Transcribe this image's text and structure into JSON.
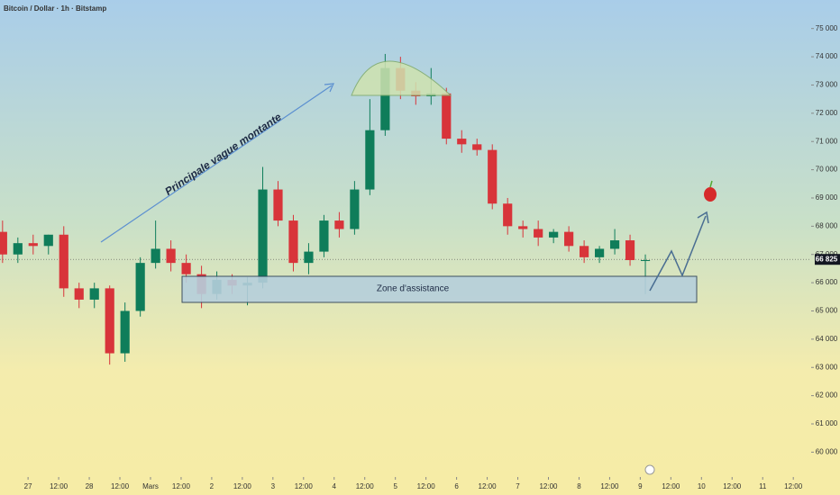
{
  "chart_data": {
    "type": "candlestick",
    "title": "Bitcoin / Dollar · 1h · Bitstamp",
    "x": [
      -10,
      -4,
      2,
      8,
      14,
      20,
      26,
      32,
      38,
      44,
      50,
      56,
      62,
      68,
      74,
      80,
      86,
      92,
      98,
      104,
      110,
      116,
      122,
      128,
      134,
      140,
      146,
      152,
      158,
      164,
      170,
      176,
      182,
      188,
      194,
      200,
      206,
      212,
      218,
      224,
      230,
      236,
      242
    ],
    "open": [
      67800,
      67000,
      67400,
      67300,
      67700,
      65800,
      65400,
      65800,
      63500,
      65000,
      66700,
      67200,
      66700,
      66300,
      65600,
      66100,
      65900,
      66000,
      69300,
      68200,
      66700,
      67100,
      68200,
      67900,
      69300,
      71400,
      73600,
      72800,
      72600,
      72700,
      71100,
      70900,
      70700,
      68800,
      68000,
      67900,
      67600,
      67800,
      67300,
      66900,
      67200,
      67500,
      66800
    ],
    "high": [
      68200,
      67600,
      67700,
      67700,
      68000,
      66000,
      66000,
      65900,
      65300,
      66900,
      68200,
      67500,
      67000,
      66600,
      66400,
      66300,
      66200,
      70100,
      69600,
      68400,
      67400,
      68400,
      68500,
      69600,
      72500,
      74100,
      74000,
      73100,
      73600,
      72900,
      71400,
      71100,
      70900,
      69000,
      68200,
      68200,
      67900,
      68000,
      67500,
      67300,
      67900,
      67700,
      67000
    ],
    "low": [
      66700,
      66700,
      67000,
      67000,
      65500,
      65100,
      65100,
      63100,
      63200,
      64800,
      66500,
      66400,
      66000,
      65100,
      65400,
      65600,
      65200,
      65800,
      68000,
      66400,
      66300,
      66900,
      67600,
      67700,
      69100,
      71200,
      72500,
      72300,
      72300,
      70900,
      70600,
      70500,
      68600,
      67700,
      67600,
      67300,
      67400,
      67100,
      66700,
      66700,
      67000,
      66600,
      65600
    ],
    "close": [
      67000,
      67400,
      67300,
      67700,
      65800,
      65400,
      65800,
      63500,
      65000,
      66700,
      67200,
      66700,
      66300,
      65600,
      66100,
      65900,
      66000,
      69300,
      68200,
      66700,
      67100,
      68200,
      67900,
      69300,
      71400,
      73600,
      72800,
      72600,
      72700,
      71100,
      70900,
      70700,
      68800,
      68000,
      67900,
      67600,
      67800,
      67300,
      66900,
      67200,
      67500,
      66800,
      66800
    ],
    "up_color": "#0f7d5a",
    "down_color": "#d8343a",
    "xlim": [
      -11,
      307
    ],
    "ylim": [
      59120,
      76010
    ],
    "xticks": [
      {
        "value": 0,
        "label": "27"
      },
      {
        "value": 12,
        "label": "12:00"
      },
      {
        "value": 24,
        "label": "28"
      },
      {
        "value": 36,
        "label": "12:00"
      },
      {
        "value": 48,
        "label": "Mars"
      },
      {
        "value": 60,
        "label": "12:00"
      },
      {
        "value": 72,
        "label": "2"
      },
      {
        "value": 84,
        "label": "12:00"
      },
      {
        "value": 96,
        "label": "3"
      },
      {
        "value": 108,
        "label": "12:00"
      },
      {
        "value": 120,
        "label": "4"
      },
      {
        "value": 132,
        "label": "12:00"
      },
      {
        "value": 144,
        "label": "5"
      },
      {
        "value": 156,
        "label": "12:00"
      },
      {
        "value": 168,
        "label": "6"
      },
      {
        "value": 180,
        "label": "12:00"
      },
      {
        "value": 192,
        "label": "7"
      },
      {
        "value": 204,
        "label": "12:00"
      },
      {
        "value": 216,
        "label": "8"
      },
      {
        "value": 228,
        "label": "12:00"
      },
      {
        "value": 240,
        "label": "9"
      },
      {
        "value": 252,
        "label": "12:00"
      },
      {
        "value": 264,
        "label": "10"
      },
      {
        "value": 276,
        "label": "12:00"
      },
      {
        "value": 288,
        "label": "11"
      },
      {
        "value": 300,
        "label": "12:00"
      }
    ],
    "yticks": [
      {
        "value": 60000,
        "label": "60 000"
      },
      {
        "value": 61000,
        "label": "61 000"
      },
      {
        "value": 62000,
        "label": "62 000"
      },
      {
        "value": 63000,
        "label": "63 000"
      },
      {
        "value": 64000,
        "label": "64 000"
      },
      {
        "value": 65000,
        "label": "65 000"
      },
      {
        "value": 66000,
        "label": "66 000"
      },
      {
        "value": 67000,
        "label": "67 000"
      },
      {
        "value": 68000,
        "label": "68 000"
      },
      {
        "value": 69000,
        "label": "69 000"
      },
      {
        "value": 70000,
        "label": "70 000"
      },
      {
        "value": 71000,
        "label": "71 000"
      },
      {
        "value": 72000,
        "label": "72 000"
      },
      {
        "value": 73000,
        "label": "73 000"
      },
      {
        "value": 74000,
        "label": "74 000"
      },
      {
        "value": 75000,
        "label": "75 000"
      }
    ],
    "last_price": {
      "value": 66825,
      "label": "66 825"
    },
    "annotations": [
      "Principale vague montante",
      "Zone d'assistance"
    ]
  }
}
